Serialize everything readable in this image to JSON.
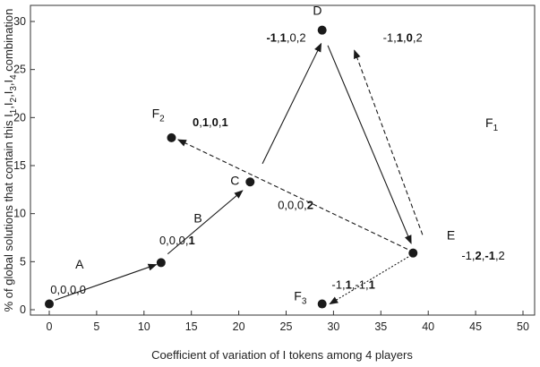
{
  "chart_data": {
    "type": "scatter",
    "title": "",
    "xlabel": "Coefficient of variation of I tokens among 4 players",
    "ylabel_parts": [
      {
        "text": "% of global solutions that contain this I",
        "sub": false
      },
      {
        "text": "1",
        "sub": true
      },
      {
        "text": ",I",
        "sub": false
      },
      {
        "text": "2",
        "sub": true
      },
      {
        "text": ",I",
        "sub": false
      },
      {
        "text": "3",
        "sub": true
      },
      {
        "text": ",I",
        "sub": false
      },
      {
        "text": "4",
        "sub": true
      },
      {
        "text": " combination",
        "sub": false
      }
    ],
    "xlim": [
      0,
      50
    ],
    "ylim": [
      0,
      30
    ],
    "xticks": [
      0,
      5,
      10,
      15,
      20,
      25,
      30,
      35,
      40,
      45,
      50
    ],
    "yticks": [
      0,
      5,
      10,
      15,
      20,
      25,
      30
    ],
    "grid": false,
    "marker_color": "#1a1a1a",
    "points": [
      {
        "id": "p0",
        "x": 0,
        "y": 0.6
      },
      {
        "id": "A",
        "x": 11.8,
        "y": 4.9
      },
      {
        "id": "C",
        "x": 21.2,
        "y": 13.3
      },
      {
        "id": "D",
        "x": 28.8,
        "y": 29.1
      },
      {
        "id": "F2",
        "x": 12.9,
        "y": 17.9
      },
      {
        "id": "E",
        "x": 38.4,
        "y": 5.9
      },
      {
        "id": "F3",
        "x": 28.8,
        "y": 0.6
      }
    ],
    "arrows": [
      {
        "from": [
          0.6,
          1.0
        ],
        "to": [
          11.3,
          4.7
        ],
        "style": "solid"
      },
      {
        "from": [
          12.5,
          5.8
        ],
        "to": [
          20.4,
          12.4
        ],
        "style": "solid"
      },
      {
        "from": [
          22.5,
          15.2
        ],
        "to": [
          28.7,
          27.7
        ],
        "style": "solid"
      },
      {
        "from": [
          29.4,
          27.5
        ],
        "to": [
          38.2,
          6.9
        ],
        "style": "solid"
      },
      {
        "from": [
          39.4,
          7.8
        ],
        "to": [
          32.2,
          27.0
        ],
        "style": "dashed"
      },
      {
        "from": [
          37.8,
          6.3
        ],
        "to": [
          13.6,
          17.7
        ],
        "style": "dashed"
      },
      {
        "from": [
          37.9,
          5.5
        ],
        "to": [
          29.6,
          0.6
        ],
        "style": "dotted"
      }
    ],
    "annotations": [
      {
        "id": "A",
        "x": 3.2,
        "y": 4.3,
        "parts": [
          {
            "text": "A"
          }
        ]
      },
      {
        "id": "B",
        "x": 15.7,
        "y": 9.1,
        "parts": [
          {
            "text": "B"
          }
        ]
      },
      {
        "id": "C",
        "x": 19.6,
        "y": 13.0,
        "parts": [
          {
            "text": "C"
          }
        ]
      },
      {
        "id": "D",
        "x": 28.3,
        "y": 30.7,
        "parts": [
          {
            "text": "D"
          }
        ]
      },
      {
        "id": "E",
        "x": 42.4,
        "y": 7.3,
        "parts": [
          {
            "text": "E"
          }
        ]
      },
      {
        "id": "F1",
        "x": 46.7,
        "y": 19.0,
        "parts": [
          {
            "text": "F"
          },
          {
            "text": "1",
            "sub": true
          }
        ]
      },
      {
        "id": "F2",
        "x": 11.5,
        "y": 20.0,
        "parts": [
          {
            "text": "F"
          },
          {
            "text": "2",
            "sub": true
          }
        ]
      },
      {
        "id": "F3",
        "x": 26.5,
        "y": 1.0,
        "parts": [
          {
            "text": "F"
          },
          {
            "text": "3",
            "sub": true
          }
        ]
      }
    ],
    "point_labels": [
      {
        "id": "p0",
        "x": 2.0,
        "y": 1.7,
        "parts": [
          {
            "text": "0,0,0,0"
          }
        ]
      },
      {
        "id": "A",
        "x": 13.5,
        "y": 6.8,
        "parts": [
          {
            "text": "0,0,0,"
          },
          {
            "text": "1",
            "bold": true
          }
        ]
      },
      {
        "id": "C",
        "x": 26.0,
        "y": 10.5,
        "parts": [
          {
            "text": "0,0,0,"
          },
          {
            "text": "2",
            "bold": true
          }
        ]
      },
      {
        "id": "D_left",
        "x": 25.0,
        "y": 27.9,
        "parts": [
          {
            "text": "-1",
            "bold": true
          },
          {
            "text": ","
          },
          {
            "text": "1",
            "bold": true
          },
          {
            "text": ",0,2"
          }
        ]
      },
      {
        "id": "D_right",
        "x": 37.3,
        "y": 27.9,
        "parts": [
          {
            "text": "-1,"
          },
          {
            "text": "1",
            "bold": true
          },
          {
            "text": ","
          },
          {
            "text": "0",
            "bold": true
          },
          {
            "text": ",2"
          }
        ]
      },
      {
        "id": "F2",
        "x": 17.0,
        "y": 19.1,
        "parts": [
          {
            "text": "0",
            "bold": true
          },
          {
            "text": ","
          },
          {
            "text": "1",
            "bold": true
          },
          {
            "text": ","
          },
          {
            "text": "0",
            "bold": true
          },
          {
            "text": ","
          },
          {
            "text": "1",
            "bold": true
          }
        ]
      },
      {
        "id": "E",
        "x": 45.8,
        "y": 5.2,
        "parts": [
          {
            "text": "-1,"
          },
          {
            "text": "2",
            "bold": true
          },
          {
            "text": ","
          },
          {
            "text": "-1",
            "bold": true
          },
          {
            "text": ",2"
          }
        ]
      },
      {
        "id": "F3",
        "x": 32.1,
        "y": 2.2,
        "parts": [
          {
            "text": "-1,"
          },
          {
            "text": "1",
            "bold": true
          },
          {
            "text": ",-1,"
          },
          {
            "text": "1",
            "bold": true
          }
        ]
      }
    ]
  }
}
